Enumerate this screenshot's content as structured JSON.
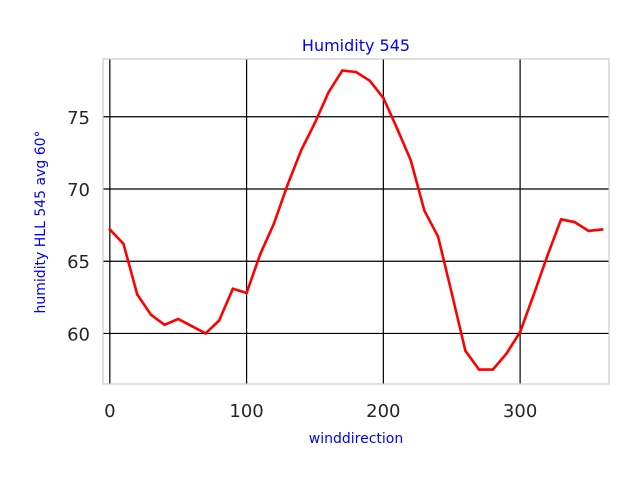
{
  "chart_data": {
    "type": "line",
    "title": "Humidity 545",
    "xlabel": "winddirection",
    "ylabel": "humidity HLL 545 avg 60°",
    "xlim": [
      -5,
      365
    ],
    "ylim": [
      56.5,
      79.0
    ],
    "x_ticks": [
      0,
      100,
      200,
      300
    ],
    "y_ticks": [
      60,
      65,
      70,
      75
    ],
    "grid": true,
    "colors": {
      "line": "#ff0000",
      "grid": "#000000",
      "text": "#0000ff",
      "ticks": "#262626",
      "frame": "#cccccc"
    },
    "series": [
      {
        "x": [
          0,
          10,
          20,
          30,
          40,
          50,
          60,
          70,
          80,
          90,
          100,
          110,
          120,
          130,
          140,
          150,
          160,
          170,
          180,
          190,
          200,
          210,
          220,
          230,
          240,
          250,
          260,
          270,
          280,
          290,
          300,
          310,
          320,
          330,
          340,
          350,
          360
        ],
        "values": [
          67.2,
          66.2,
          62.7,
          61.3,
          60.6,
          61.0,
          60.5,
          60.0,
          60.9,
          63.1,
          62.8,
          65.5,
          67.6,
          70.3,
          72.7,
          74.6,
          76.7,
          78.2,
          78.1,
          77.5,
          76.3,
          74.2,
          72.0,
          68.5,
          66.7,
          62.8,
          58.8,
          57.5,
          57.5,
          58.6,
          60.1,
          62.7,
          65.4,
          67.9,
          67.7,
          67.1,
          67.2
        ]
      }
    ]
  }
}
